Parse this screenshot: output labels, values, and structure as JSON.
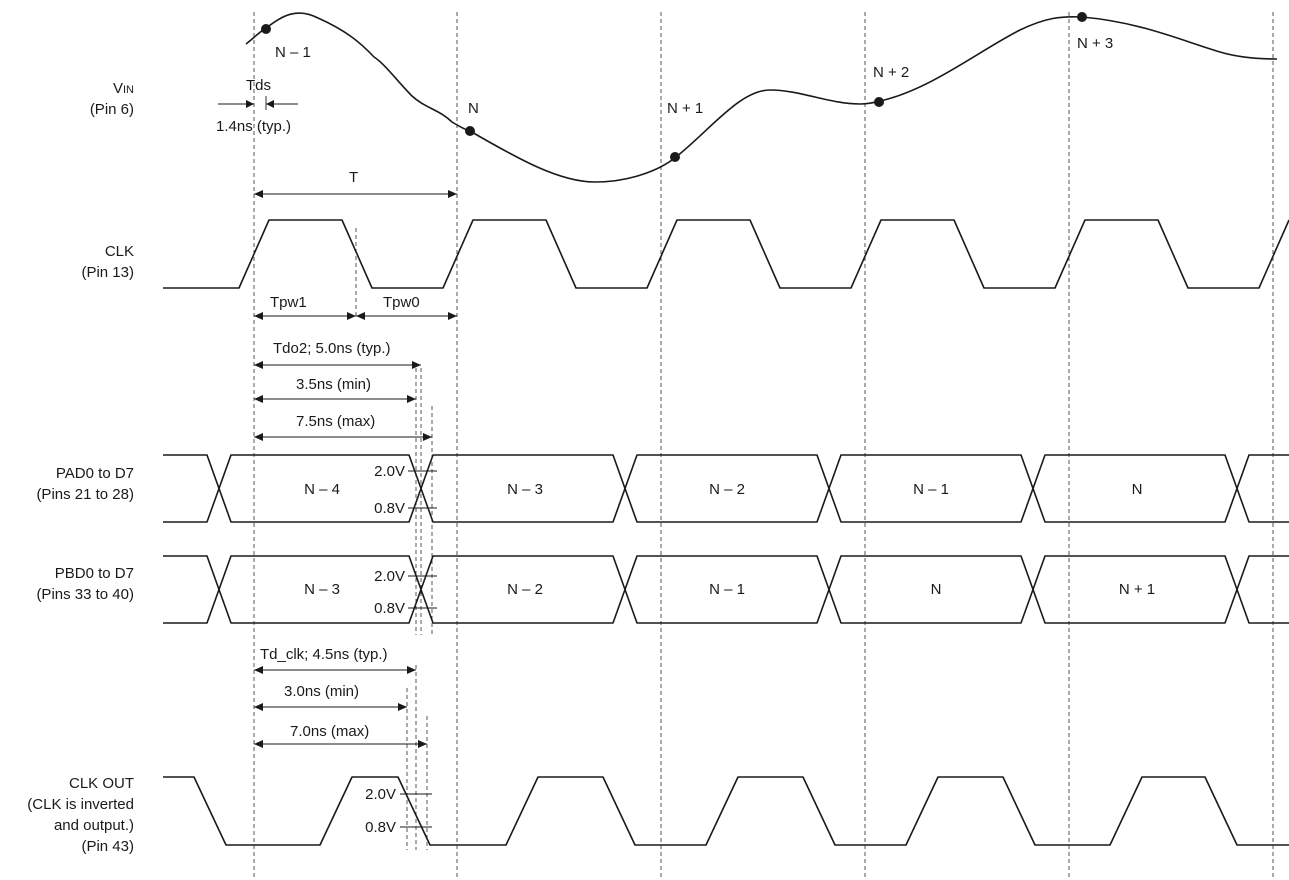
{
  "signals": {
    "vin": {
      "name": "VIN",
      "name_main": "V",
      "name_sub": "IN",
      "pin": "(Pin 6)"
    },
    "clk": {
      "name": "CLK",
      "pin": "(Pin 13)"
    },
    "pad": {
      "name": "PAD0 to D7",
      "pin": "(Pins 21 to 28)"
    },
    "pbd": {
      "name": "PBD0 to D7",
      "pin": "(Pins 33 to 40)"
    },
    "clkout": {
      "name": "CLK OUT",
      "line2": "(CLK is inverted",
      "line3": "and output.)",
      "pin": "(Pin 43)"
    }
  },
  "samples": {
    "nm1": "N – 1",
    "n": "N",
    "np1": "N + 1",
    "np2": "N + 2",
    "np3": "N + 3"
  },
  "timing": {
    "tds": "Tds",
    "tds_val": "1.4ns (typ.)",
    "t": "T",
    "tpw1": "Tpw1",
    "tpw0": "Tpw0",
    "tdo2_typ": "Tdo2; 5.0ns (typ.)",
    "tdo2_min": "3.5ns (min)",
    "tdo2_max": "7.5ns (max)",
    "tdclk_typ": "Td_clk; 4.5ns (typ.)",
    "tdclk_min": "3.0ns (min)",
    "tdclk_max": "7.0ns (max)"
  },
  "levels": {
    "high": "2.0V",
    "low": "0.8V"
  },
  "pad_data": [
    "N – 4",
    "N – 3",
    "N – 2",
    "N – 1",
    "N"
  ],
  "pbd_data": [
    "N – 3",
    "N – 2",
    "N – 1",
    "N",
    "N + 1"
  ]
}
